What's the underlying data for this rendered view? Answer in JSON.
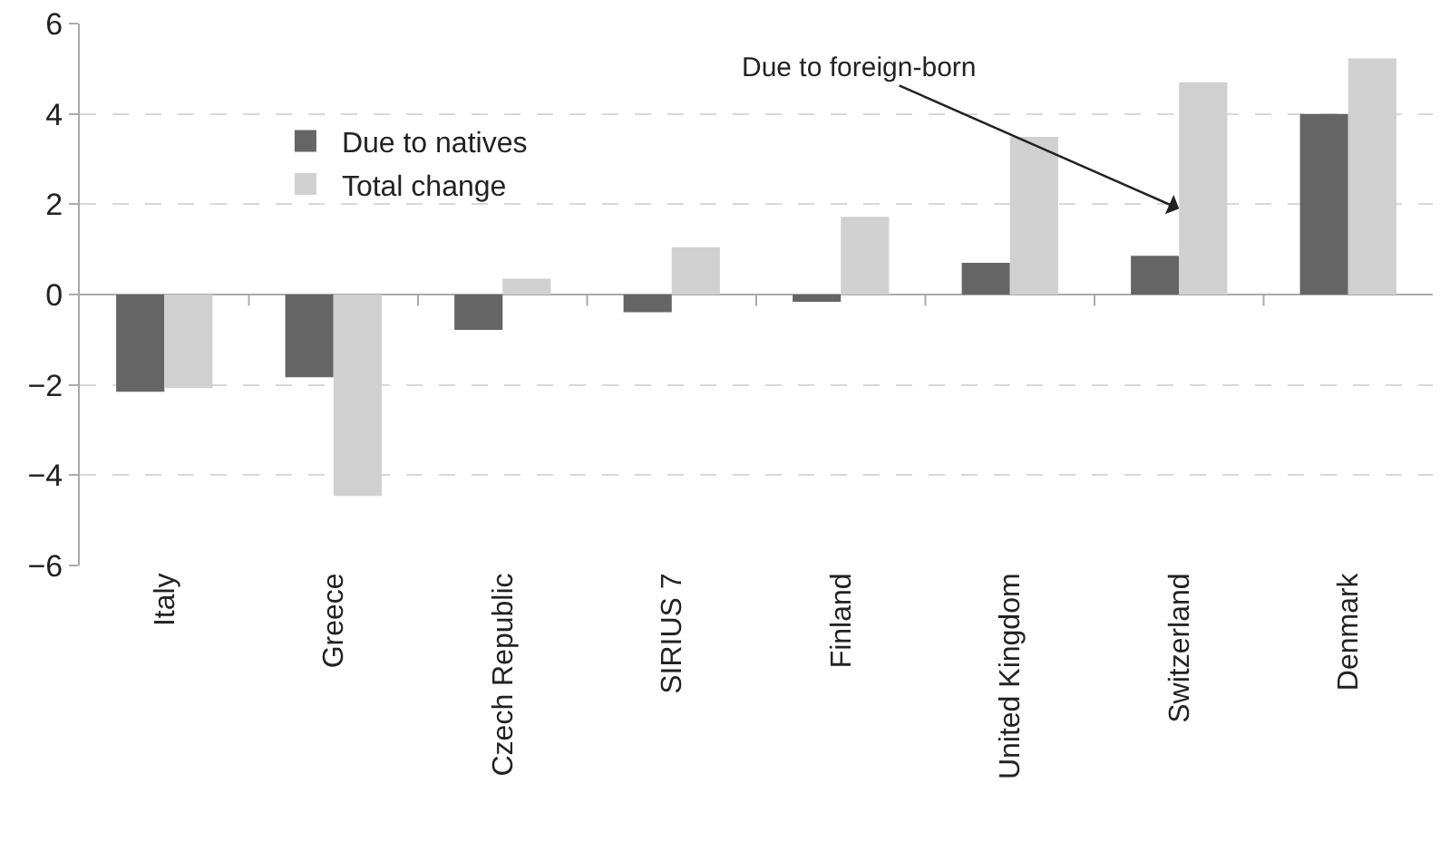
{
  "chart_data": {
    "type": "bar",
    "categories": [
      "Italy",
      "Greece",
      "Czech Republic",
      "SIRIUS 7",
      "Finland",
      "United Kingdom",
      "Switzerland",
      "Denmark"
    ],
    "series": [
      {
        "name": "Due to natives",
        "color": "#656565",
        "values": [
          -2.15,
          -1.83,
          -0.78,
          -0.39,
          -0.16,
          0.7,
          0.86,
          4.0
        ]
      },
      {
        "name": "Total change",
        "color": "#d0d0d0",
        "values": [
          -2.07,
          -4.46,
          0.35,
          1.05,
          1.72,
          3.49,
          4.7,
          5.23
        ]
      }
    ],
    "ylim": [
      -6,
      6
    ],
    "yticks": [
      {
        "value": -6,
        "label": "−6"
      },
      {
        "value": -4,
        "label": "−4"
      },
      {
        "value": -2,
        "label": "−2"
      },
      0,
      2,
      4,
      6
    ],
    "grid": "y",
    "legend": "top left",
    "annotations": [
      {
        "text": "Due to foreign-born",
        "x": "Switzerland",
        "y": 1.9
      }
    ]
  }
}
